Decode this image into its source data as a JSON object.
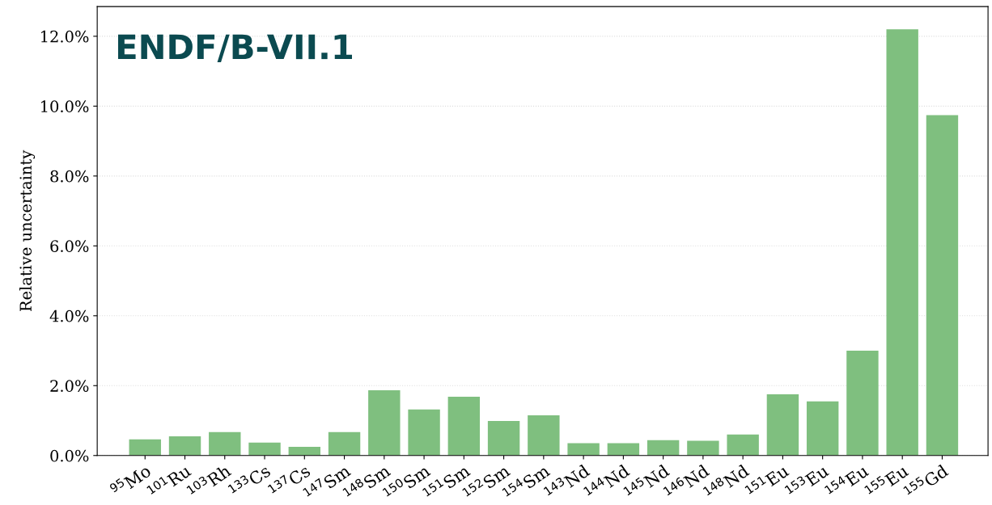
{
  "chart_data": {
    "type": "bar",
    "title": "ENDF/B-VII.1",
    "ylabel": "Relative uncertainty",
    "categories": [
      "$^{95}$Mo",
      "$^{101}$Ru",
      "$^{103}$Rh",
      "$^{133}$Cs",
      "$^{137}$Cs",
      "$^{147}$Sm",
      "$^{148}$Sm",
      "$^{150}$Sm",
      "$^{151}$Sm",
      "$^{152}$Sm",
      "$^{154}$Sm",
      "$^{143}$Nd",
      "$^{144}$Nd",
      "$^{145}$Nd",
      "$^{146}$Nd",
      "$^{148}$Nd",
      "$^{151}$Eu",
      "$^{153}$Eu",
      "$^{154}$Eu",
      "$^{155}$Eu",
      "$^{155}$Gd"
    ],
    "values": [
      0.46,
      0.55,
      0.67,
      0.37,
      0.25,
      0.67,
      1.87,
      1.32,
      1.68,
      0.99,
      1.15,
      0.35,
      0.35,
      0.44,
      0.42,
      0.6,
      1.75,
      1.55,
      3.0,
      12.2,
      9.74
    ],
    "color": "#7fbf7f",
    "ylim": [
      0,
      12.85
    ],
    "yticks": [
      {
        "value": 0,
        "label": "0.0%"
      },
      {
        "value": 2,
        "label": "2.0%"
      },
      {
        "value": 4,
        "label": "4.0%"
      },
      {
        "value": 6,
        "label": "6.0%"
      },
      {
        "value": 8,
        "label": "8.0%"
      },
      {
        "value": 10,
        "label": "10.0%"
      },
      {
        "value": 12,
        "label": "12.0%"
      }
    ],
    "grid": "y"
  }
}
